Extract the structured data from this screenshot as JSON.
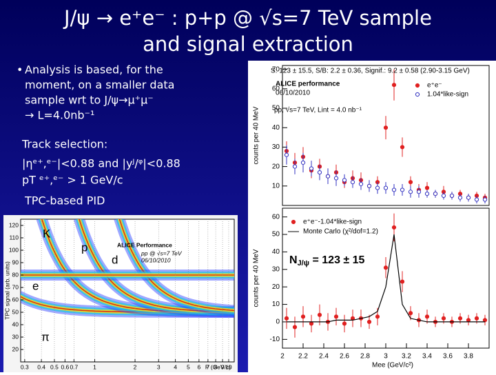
{
  "title": [
    "J/ψ → e⁺e⁻ : p+p @ √s=7 TeV sample",
    "and signal extraction"
  ],
  "bullet": [
    "Analysis is based, for the",
    "moment, on a smaller data",
    "sample wrt to J/ψ→μ⁺μ⁻",
    "→ L=4.0nb⁻¹"
  ],
  "track_selection": [
    "Track selection:",
    "|ηᵉ⁺,ᵉ⁻|<0.88 and |yᴶ/ᵠ|<0.88",
    "pT ᵉ⁺,ᵉ⁻ > 1 GeV/c"
  ],
  "pid": "TPC-based PID",
  "plots": {
    "tpc": {
      "type": "heatmap",
      "log_x": true,
      "title": "ALICE Performance",
      "subtitle": "pp @ √s=7 TeV",
      "date": "06/10/2010",
      "x_label": "P (GeV/c)",
      "y_label": "TPC signal (arb. units)",
      "xlim": [
        0.28,
        11
      ],
      "ylim": [
        10,
        125
      ],
      "xticks": [
        0.3,
        0.4,
        0.5,
        0.6,
        0.7,
        1,
        2,
        3,
        4,
        5,
        6,
        7,
        8,
        9,
        10
      ],
      "yticks": [
        20,
        30,
        40,
        50,
        60,
        70,
        80,
        90,
        100,
        110,
        120
      ],
      "species": [
        "K",
        "p",
        "d",
        "e",
        "π"
      ]
    },
    "mass_top": {
      "type": "scatter",
      "stats": "S: 123 ± 15.5, S/B: 2.2 ± 0.36, Signif.: 9.2 ± 0.58 (2.90-3.15 GeV)",
      "title": "ALICE performance",
      "date": "06/10/2010",
      "subtitle": "pp, √s=7 TeV, Lint = 4.0 nb⁻¹",
      "y_label": "counts per 40 MeV",
      "xlim": [
        2,
        4
      ],
      "ylim": [
        0,
        72
      ],
      "yticks": [
        10,
        20,
        30,
        40,
        50,
        60,
        70
      ],
      "x": [
        2.04,
        2.12,
        2.2,
        2.28,
        2.36,
        2.44,
        2.52,
        2.6,
        2.68,
        2.76,
        2.84,
        2.92,
        3.0,
        3.08,
        3.16,
        3.24,
        3.32,
        3.4,
        3.48,
        3.56,
        3.64,
        3.72,
        3.8,
        3.88,
        3.96
      ],
      "series": [
        {
          "name": "e⁺e⁻",
          "color": "#e02020",
          "marker": "filled",
          "values": [
            28,
            22,
            25,
            18,
            20,
            15,
            17,
            12,
            14,
            13,
            10,
            12,
            40,
            62,
            30,
            12,
            8,
            9,
            6,
            7,
            5,
            6,
            4,
            5,
            4
          ],
          "errors": [
            5,
            5,
            5,
            4,
            4,
            4,
            4,
            3,
            4,
            4,
            3,
            3,
            6,
            8,
            5,
            3,
            3,
            3,
            2,
            3,
            2,
            2,
            2,
            2,
            2
          ]
        },
        {
          "name": "1.04*like-sign",
          "color": "#3030c0",
          "marker": "open",
          "values": [
            26,
            20,
            22,
            19,
            17,
            15,
            14,
            13,
            12,
            11,
            10,
            9,
            9,
            8,
            8,
            7,
            7,
            6,
            6,
            5,
            5,
            4,
            4,
            3,
            3
          ],
          "errors": [
            5,
            4,
            5,
            4,
            4,
            4,
            4,
            3,
            3,
            3,
            3,
            3,
            3,
            3,
            3,
            3,
            3,
            2,
            2,
            2,
            2,
            2,
            2,
            2,
            2
          ]
        }
      ]
    },
    "mass_bottom": {
      "type": "scatter",
      "y_label": "counts per 40 MeV",
      "x_label": "Mee (GeV/c²)",
      "annotation": [
        "N",
        "J/ψ",
        " = 123 ± 15"
      ],
      "xlim": [
        2,
        4
      ],
      "ylim": [
        -15,
        65
      ],
      "xticks": [
        2,
        2.2,
        2.4,
        2.6,
        2.8,
        3,
        3.2,
        3.4,
        3.6,
        3.8
      ],
      "yticks": [
        -10,
        0,
        10,
        20,
        30,
        40,
        50,
        60
      ],
      "x": [
        2.04,
        2.12,
        2.2,
        2.28,
        2.36,
        2.44,
        2.52,
        2.6,
        2.68,
        2.76,
        2.84,
        2.92,
        3.0,
        3.08,
        3.16,
        3.24,
        3.32,
        3.4,
        3.48,
        3.56,
        3.64,
        3.72,
        3.8,
        3.88,
        3.96
      ],
      "series": [
        {
          "name": "e⁺e⁻-1.04*like-sign",
          "color": "#e02020",
          "marker": "filled",
          "values": [
            2,
            -3,
            3,
            -1,
            4,
            0,
            3,
            -1,
            2,
            2,
            0,
            3,
            31,
            54,
            23,
            5,
            1,
            3,
            0,
            2,
            0,
            2,
            1,
            2,
            1
          ],
          "errors": [
            6,
            6,
            6,
            5,
            6,
            5,
            5,
            5,
            5,
            5,
            4,
            5,
            6,
            8,
            6,
            4,
            4,
            4,
            3,
            3,
            3,
            3,
            3,
            3,
            3
          ]
        },
        {
          "name": "Monte Carlo (χ²/dof=1.2)",
          "color": "#000000",
          "marker": "line",
          "values": [
            0,
            0,
            0,
            0,
            0,
            0,
            1,
            1,
            1,
            2,
            3,
            6,
            20,
            50,
            10,
            2,
            1,
            0,
            0,
            0,
            0,
            0,
            0,
            0,
            0
          ]
        }
      ]
    }
  }
}
